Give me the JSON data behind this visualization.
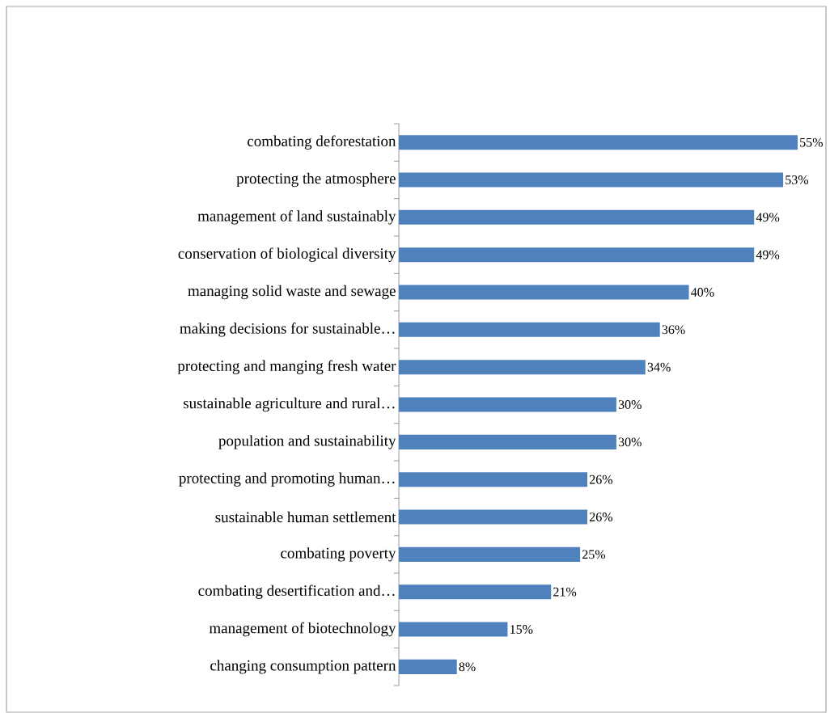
{
  "chart_data": {
    "type": "bar",
    "orientation": "horizontal",
    "tick_labels": "y",
    "color": "#4f81bd",
    "categories": [
      "combating deforestation",
      "protecting the atmosphere",
      "management of land sustainably",
      "conservation of biological diversity",
      "managing solid waste and sewage",
      "making decisions for sustainable…",
      "protecting and manging fresh water",
      "sustainable agriculture and rural…",
      "population and sustainability",
      "protecting and promoting human…",
      "sustainable human settlement",
      "combating poverty",
      "combating desertification and…",
      "management of biotechnology",
      "changing consumption pattern"
    ],
    "values": [
      55,
      53,
      49,
      49,
      40,
      36,
      34,
      30,
      30,
      26,
      26,
      25,
      21,
      15,
      8
    ],
    "value_labels": [
      "55%",
      "53%",
      "49%",
      "49%",
      "40%",
      "36%",
      "34%",
      "30%",
      "30%",
      "26%",
      "26%",
      "25%",
      "21%",
      "15%",
      "8%"
    ]
  }
}
